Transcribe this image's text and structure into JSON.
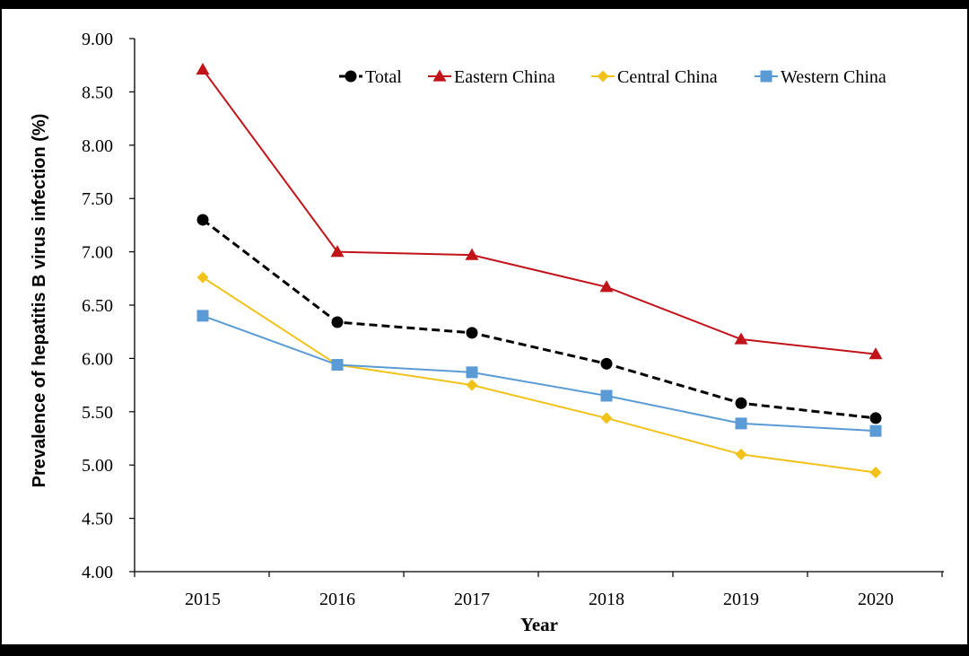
{
  "chart_data": {
    "type": "line",
    "title": "",
    "xlabel": "Year",
    "ylabel": "Prevalence of hepatitis B virus infection (%)",
    "x": [
      "2015",
      "2016",
      "2017",
      "2018",
      "2019",
      "2020"
    ],
    "ylim": [
      4.0,
      9.0
    ],
    "yticks": [
      "4.00",
      "4.50",
      "5.00",
      "5.50",
      "6.00",
      "6.50",
      "7.00",
      "7.50",
      "8.00",
      "8.50",
      "9.00"
    ],
    "grid": false,
    "legend_position": "top-right",
    "series": [
      {
        "name": "Total",
        "values": [
          7.3,
          6.34,
          6.24,
          5.95,
          5.58,
          5.44
        ],
        "color": "#000000",
        "marker": "circle",
        "dash": true
      },
      {
        "name": "Eastern China",
        "values": [
          8.71,
          7.0,
          6.97,
          6.67,
          6.18,
          6.04
        ],
        "color": "#c0131a",
        "marker": "triangle",
        "dash": false
      },
      {
        "name": "Central China",
        "values": [
          6.76,
          5.94,
          5.75,
          5.44,
          5.1,
          4.93
        ],
        "color": "#f2c21b",
        "marker": "diamond",
        "dash": false
      },
      {
        "name": "Western China",
        "values": [
          6.4,
          5.94,
          5.87,
          5.65,
          5.39,
          5.32
        ],
        "color": "#5b9bd5",
        "marker": "square",
        "dash": false
      }
    ]
  }
}
